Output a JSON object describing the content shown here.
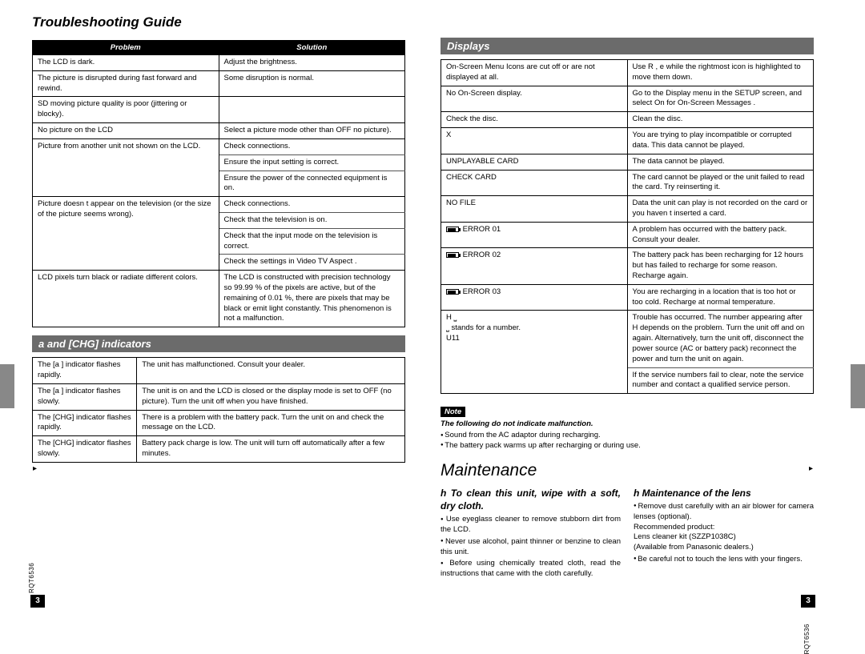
{
  "side_code": "RQT6536",
  "page_num": "3",
  "left": {
    "title": "Troubleshooting Guide",
    "table1": {
      "headers": [
        "Problem",
        "Solution"
      ],
      "rows": [
        {
          "p": "The LCD is dark.",
          "s": [
            "Adjust the brightness."
          ],
          "end": true
        },
        {
          "p": "The picture is disrupted during fast forward and rewind.",
          "s": [
            "Some disruption is normal."
          ],
          "end": true
        },
        {
          "p": "SD moving picture quality is poor (jittering or blocky).",
          "s": [
            ""
          ],
          "end": true
        },
        {
          "p": "No picture on the LCD",
          "s": [
            "Select a picture mode other than  OFF  no picture)."
          ],
          "end": true
        },
        {
          "p": "Picture from another unit not shown on the LCD.",
          "s": [
            "Check connections.",
            "Ensure the input setting is correct.",
            "Ensure the power of the connected equipment is on."
          ],
          "end": true
        },
        {
          "p": "Picture doesn t appear on the television (or the size of the picture seems wrong).",
          "s": [
            "Check connections.",
            "Check that the television is on.",
            "Check that the input mode on the television is correct.",
            "Check the settings in  Video TV Aspect ."
          ],
          "end": true
        },
        {
          "p": "LCD pixels turn black or radiate different colors.",
          "s": [
            "The LCD is constructed with precision technology so 99.99 % of the pixels are active, but of the remaining of 0.01 %, there are pixels that may be black or emit light constantly. This phenomenon is not a malfunction."
          ],
          "end": true
        }
      ]
    },
    "bar2": "a   and [CHG] indicators",
    "table2": {
      "rows": [
        {
          "p": "The [a ] indicator flashes rapidly.",
          "s": [
            "The unit has malfunctioned. Consult your dealer."
          ],
          "end": true
        },
        {
          "p": "The [a ] indicator flashes slowly.",
          "s": [
            "The unit is on and the LCD is closed or the display mode is set to  OFF  (no picture). Turn the unit off when you have finished."
          ],
          "end": true
        },
        {
          "p": "The [CHG] indicator flashes rapidly.",
          "s": [
            "There is a problem with the battery pack. Turn the unit on and check the message on the LCD."
          ],
          "end": true
        },
        {
          "p": "The [CHG] indicator flashes slowly.",
          "s": [
            "Battery pack charge is low. The unit will turn off automatically after a few minutes."
          ],
          "end": true
        }
      ]
    }
  },
  "right": {
    "bar1": "Displays",
    "table1": {
      "rows": [
        {
          "p": "On-Screen Menu Icons are cut off or are not displayed at all.",
          "s": [
            "Use R , e  while the rightmost icon is highlighted to move them down."
          ],
          "end": true
        },
        {
          "p": "No On-Screen display.",
          "s": [
            "Go to the Display menu in the SETUP screen, and select  On  for  On-Screen Messages ."
          ],
          "end": true
        },
        {
          "p": "Check the disc.",
          "s": [
            "Clean the disc."
          ],
          "end": true
        },
        {
          "p": "X",
          "s": [
            "You are trying to play incompatible or corrupted data. This data cannot be played."
          ],
          "end": true
        },
        {
          "p": "UNPLAYABLE CARD",
          "s": [
            "The data cannot be played."
          ],
          "end": true
        },
        {
          "p": "CHECK CARD",
          "s": [
            "The card cannot be played or the unit failed to read the card. Try reinserting it."
          ],
          "end": true
        },
        {
          "p": "NO FILE",
          "s": [
            "Data the unit can play is not recorded on the card or you haven t inserted a card."
          ],
          "end": true
        },
        {
          "p": "__BAT__ ERROR 01",
          "s": [
            "A problem has occurred with the battery pack. Consult your dealer."
          ],
          "end": true
        },
        {
          "p": "__BAT__ ERROR 02",
          "s": [
            "The battery pack has been recharging for 12 hours but has failed to recharge for some reason. Recharge again."
          ],
          "end": true
        },
        {
          "p": "__BAT__ ERROR 03",
          "s": [
            "You are recharging in a location that is too hot or too cold. Recharge at normal temperature."
          ],
          "end": true
        },
        {
          "p": "H ⎵\n ⎵  stands for a number.\nU11",
          "s": [
            "Trouble has occurred. The number appearing after H depends on the problem. Turn the unit off and on again. Alternatively, turn the unit off, disconnect the power source (AC or battery pack) reconnect the power and turn the unit on again.",
            "If the service numbers fail to clear, note the service number and contact a qualified service person."
          ],
          "end": true
        }
      ]
    },
    "note_label": "Note",
    "note_heading": "The following do not indicate malfunction.",
    "note_lines": [
      "Sound from the AC adaptor during recharging.",
      "The battery pack warms up after recharging or during use."
    ],
    "maint_title": "Maintenance",
    "maint_left_head": "h  To clean this unit, wipe with a soft, dry cloth.",
    "maint_left_items": [
      "Use eyeglass cleaner to remove stubborn dirt from the LCD.",
      "Never use alcohol, paint thinner or benzine to clean this unit.",
      "Before using chemically treated cloth, read the instructions that came with the cloth carefully."
    ],
    "maint_right_head": "h  Maintenance of the lens",
    "maint_right_items": [
      "Remove dust carefully with an air blower for camera lenses (optional).\nRecommended product:\n  Lens cleaner kit (SZZP1038C)\n  (Available from Panasonic dealers.)",
      "Be careful not to touch the lens with your fingers."
    ]
  }
}
